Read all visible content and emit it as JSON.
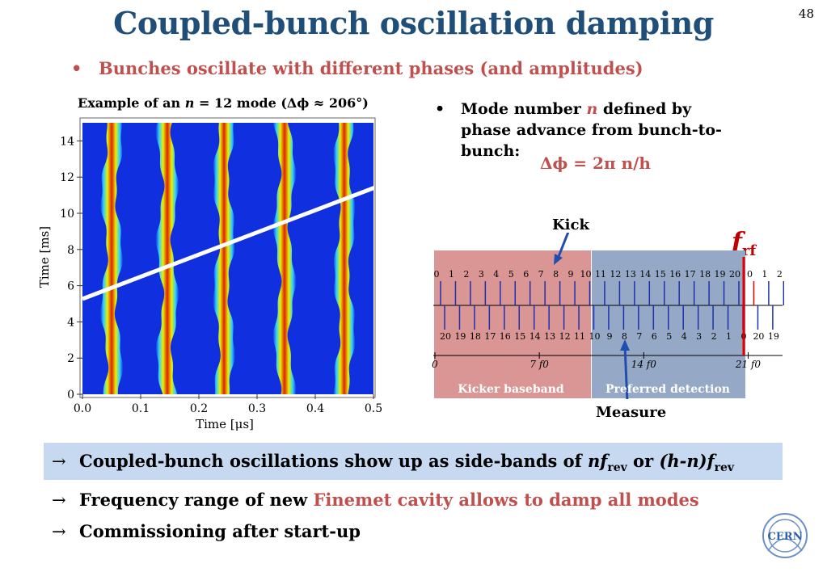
{
  "slide": {
    "title": "Coupled-bunch oscillation damping",
    "number": "48",
    "bullet_main": "Bunches oscillate with different phases (and amplitudes)"
  },
  "plot": {
    "caption_pre": "Example of an ",
    "caption_var": "n",
    "caption_post": " = 12 mode (Δϕ ≈ 206°)",
    "xlabel": "Time [μs]",
    "ylabel": "Time [ms]",
    "xticks": [
      "0.0",
      "0.1",
      "0.2",
      "0.3",
      "0.4",
      "0.5"
    ],
    "yticks": [
      "0",
      "2",
      "4",
      "6",
      "8",
      "10",
      "12",
      "14"
    ],
    "colors": {
      "background": "#1030e0",
      "stripe_edge": "#30d0ff",
      "stripe_mid": "#e8f000",
      "stripe_core": "#e02000"
    }
  },
  "right_bullet": {
    "text_pre": "Mode number ",
    "var": "n",
    "text_post": " defined by phase advance from bunch-to-bunch:",
    "formula": "Δϕ = 2π n/h"
  },
  "spectrum": {
    "kick_label": "Kick",
    "measure_label": "Measure",
    "frf_label": "f",
    "frf_sub": "rf",
    "top_numbers": [
      "0",
      "1",
      "2",
      "3",
      "4",
      "5",
      "6",
      "7",
      "8",
      "9",
      "10",
      "11",
      "12",
      "13",
      "14",
      "15",
      "16",
      "17",
      "18",
      "19",
      "20",
      "0",
      "1",
      "2"
    ],
    "bottom_numbers": [
      "20",
      "19",
      "18",
      "17",
      "16",
      "15",
      "14",
      "13",
      "12",
      "11",
      "10",
      "9",
      "8",
      "7",
      "6",
      "5",
      "4",
      "3",
      "2",
      "1",
      "0",
      "20",
      "19"
    ],
    "axis_labels": [
      "0",
      "7 f0",
      "14 f0",
      "21 f0"
    ],
    "band_left_label": "Kicker baseband",
    "band_right_label": "Preferred detection",
    "colors": {
      "band_left": "#d99694",
      "band_right": "#95a9c6",
      "lines": "#1f2fb0",
      "rf": "#e00000"
    }
  },
  "conclusions": {
    "line1_pre": "Coupled-bunch oscillations show up as side-bands of ",
    "line1_nf": "nf",
    "line1_sub1": "rev",
    "line1_or": " or ",
    "line1_hn": "(h-n)f",
    "line1_sub2": "rev",
    "line2_pre": "Frequency range of new ",
    "line2_red": "Finemet cavity allows to damp all modes",
    "line3": "Commissioning after start-up",
    "arrow": "→"
  },
  "logo": {
    "text": "CERN"
  }
}
